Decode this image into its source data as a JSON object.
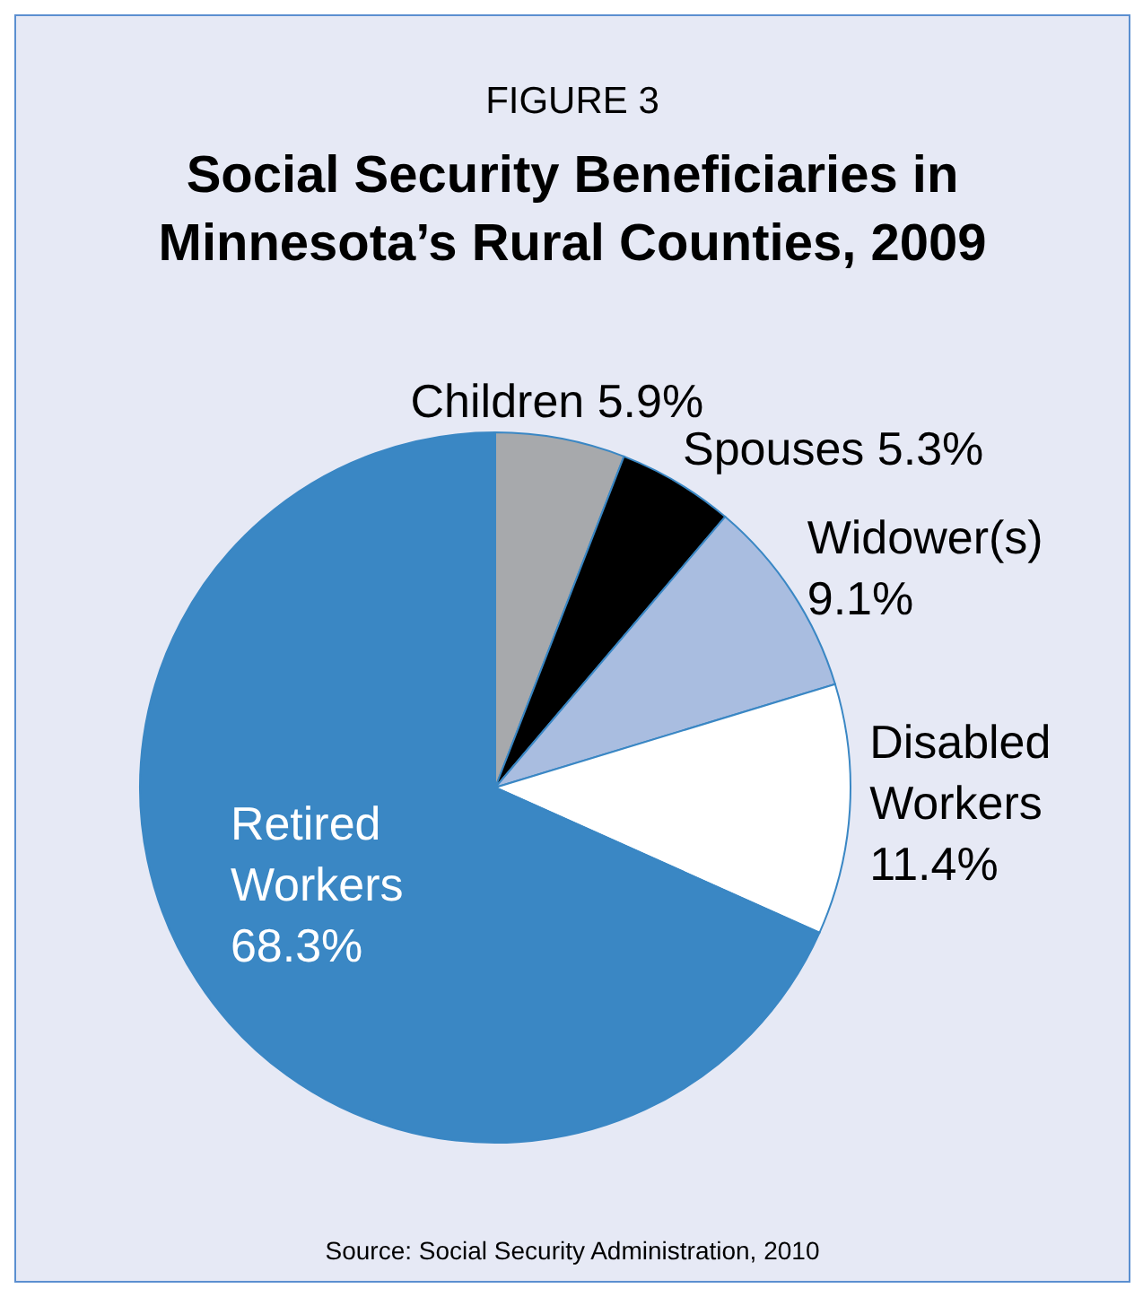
{
  "chart_data": {
    "type": "pie",
    "subtitle": "FIGURE 3",
    "title": "Social Security Beneficiaries in Minnesota’s Rural Counties, 2009",
    "categories": [
      "Children",
      "Spouses",
      "Widower(s)",
      "Disabled Workers",
      "Retired Workers"
    ],
    "values": [
      5.9,
      5.3,
      9.1,
      11.4,
      68.3
    ],
    "value_labels": [
      "5.9%",
      "5.3%",
      "9.1%",
      "11.4%",
      "68.3%"
    ],
    "colors": [
      "#a7a9ac",
      "#000000",
      "#a9bde0",
      "#ffffff",
      "#3a87c4"
    ],
    "annotations": [
      "Source: Social Security Administration, 2010"
    ]
  }
}
